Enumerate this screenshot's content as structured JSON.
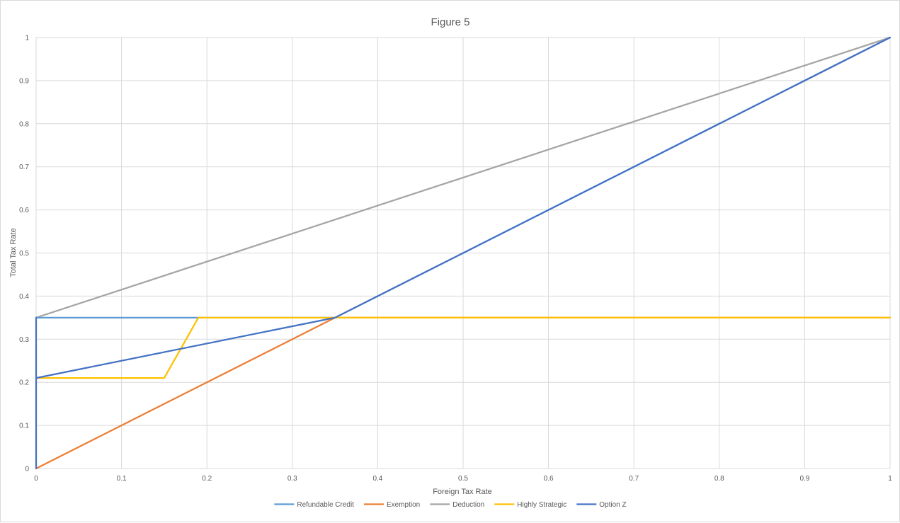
{
  "chart_data": {
    "type": "line",
    "title": "Figure 5",
    "xlabel": "Foreign Tax Rate",
    "ylabel": "Total Tax Rate",
    "xlim": [
      0,
      1
    ],
    "ylim": [
      0,
      1
    ],
    "x_ticks": [
      "0",
      "0.1",
      "0.2",
      "0.3",
      "0.4",
      "0.5",
      "0.6",
      "0.7",
      "0.8",
      "0.9",
      "1"
    ],
    "y_ticks": [
      "0",
      "0.1",
      "0.2",
      "0.3",
      "0.4",
      "0.5",
      "0.6",
      "0.7",
      "0.8",
      "0.9",
      "1"
    ],
    "grid": true,
    "legend_position": "bottom",
    "series": [
      {
        "name": "Refundable Credit",
        "color": "#5b9bd5",
        "x": [
          0,
          0.35,
          1
        ],
        "y": [
          0.35,
          0.35,
          1
        ]
      },
      {
        "name": "Exemption",
        "color": "#ed7d31",
        "x": [
          0,
          0.35,
          1
        ],
        "y": [
          0,
          0.35,
          0.35
        ]
      },
      {
        "name": "Deduction",
        "color": "#a5a5a5",
        "x": [
          0,
          1
        ],
        "y": [
          0.35,
          1
        ]
      },
      {
        "name": "Highly Strategic",
        "color": "#ffc000",
        "x": [
          0,
          0.15,
          0.19,
          1
        ],
        "y": [
          0.21,
          0.21,
          0.35,
          0.35
        ]
      },
      {
        "name": "Option Z",
        "color": "#4472c4",
        "x": [
          0,
          0,
          0,
          0.35,
          1
        ],
        "y": [
          0,
          0.35,
          0.21,
          0.35,
          1
        ]
      }
    ]
  }
}
